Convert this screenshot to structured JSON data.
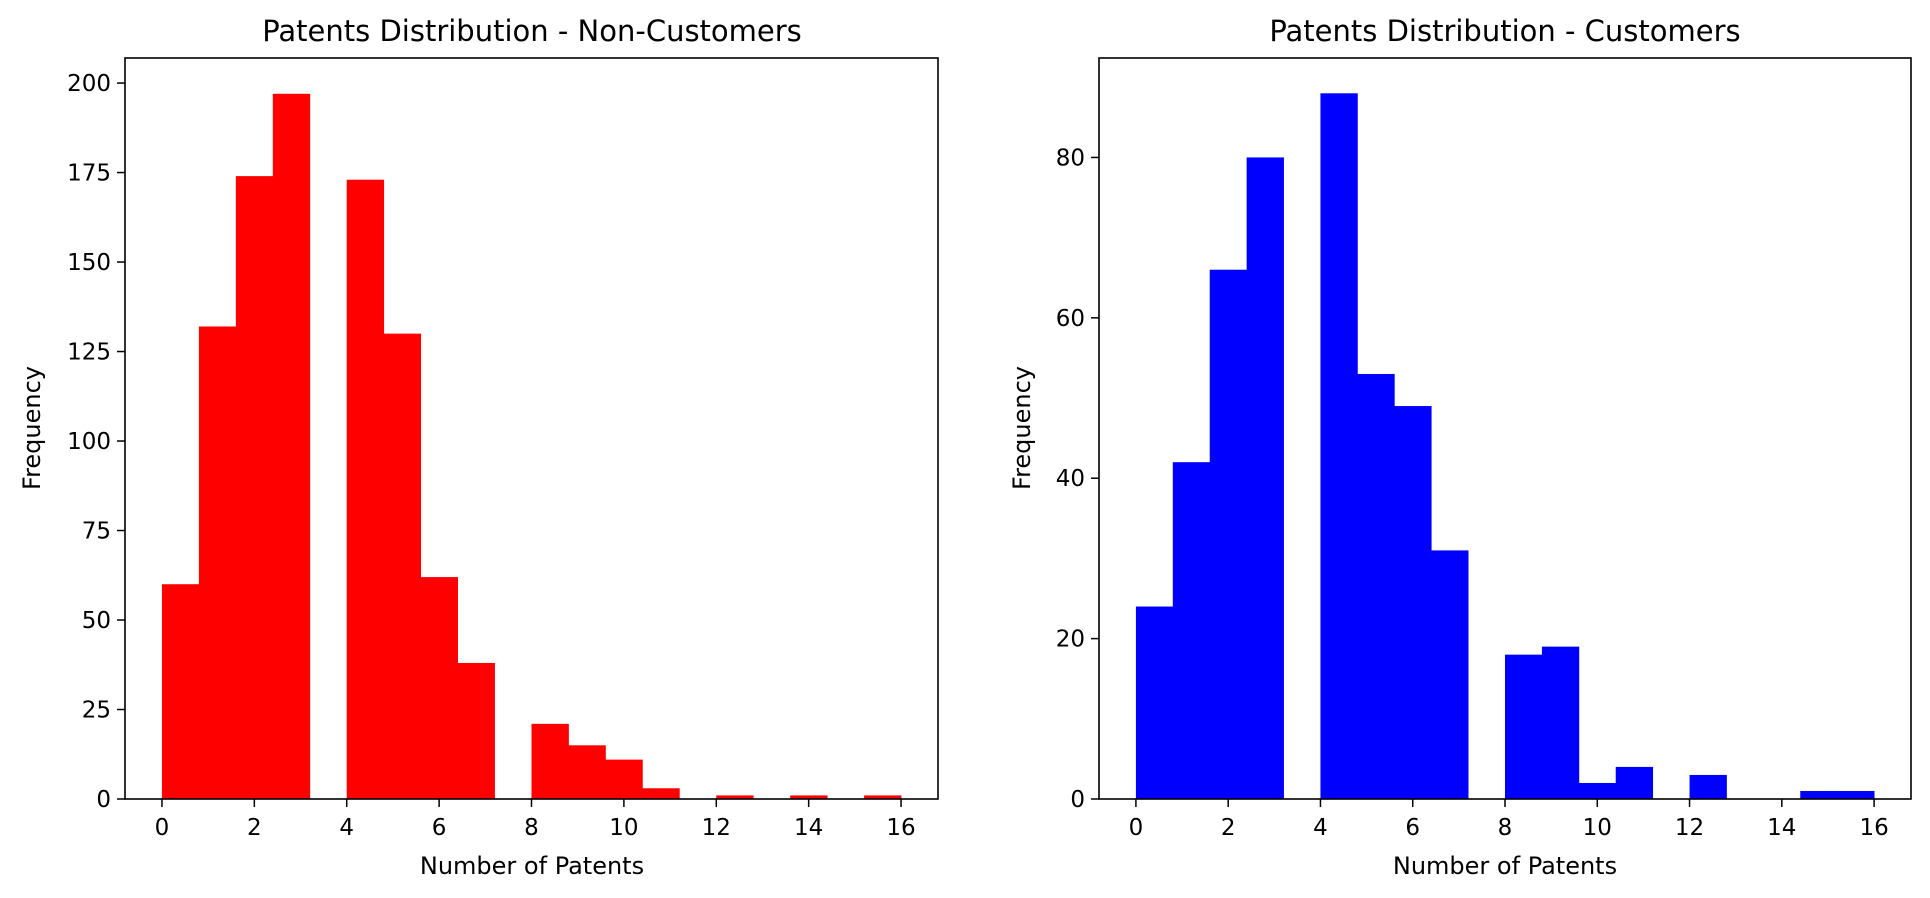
{
  "chart_data": [
    {
      "type": "bar",
      "title": "Patents Distribution - Non-Customers",
      "xlabel": "Number of Patents",
      "ylabel": "Frequency",
      "color": "#ff0000",
      "bins": [
        [
          0.0,
          0.8
        ],
        [
          0.8,
          1.6
        ],
        [
          1.6,
          2.4
        ],
        [
          2.4,
          3.2
        ],
        [
          3.2,
          4.0
        ],
        [
          4.0,
          4.8
        ],
        [
          4.8,
          5.6
        ],
        [
          5.6,
          6.4
        ],
        [
          6.4,
          7.2
        ],
        [
          7.2,
          8.0
        ],
        [
          8.0,
          8.8
        ],
        [
          8.8,
          9.6
        ],
        [
          9.6,
          10.4
        ],
        [
          10.4,
          11.2
        ],
        [
          11.2,
          12.0
        ],
        [
          12.0,
          12.8
        ],
        [
          12.8,
          13.6
        ],
        [
          13.6,
          14.4
        ],
        [
          14.4,
          15.2
        ],
        [
          15.2,
          16.0
        ]
      ],
      "values": [
        60,
        132,
        174,
        197,
        0,
        173,
        130,
        62,
        38,
        0,
        21,
        15,
        11,
        3,
        0,
        1,
        0,
        1,
        0,
        1
      ],
      "xlim": [
        -0.8,
        16.8
      ],
      "ylim": [
        0,
        207
      ],
      "xticks": [
        0,
        2,
        4,
        6,
        8,
        10,
        12,
        14,
        16
      ],
      "xtick_labels": [
        "0",
        "2",
        "4",
        "6",
        "8",
        "10",
        "12",
        "14",
        "16"
      ],
      "yticks": [
        0,
        25,
        50,
        75,
        100,
        125,
        150,
        175,
        200
      ],
      "ytick_labels": [
        "0",
        "25",
        "50",
        "75",
        "100",
        "125",
        "150",
        "175",
        "200"
      ]
    },
    {
      "type": "bar",
      "title": "Patents Distribution - Customers",
      "xlabel": "Number of Patents",
      "ylabel": "Frequency",
      "color": "#0000ff",
      "bins": [
        [
          0.0,
          0.8
        ],
        [
          0.8,
          1.6
        ],
        [
          1.6,
          2.4
        ],
        [
          2.4,
          3.2
        ],
        [
          3.2,
          4.0
        ],
        [
          4.0,
          4.8
        ],
        [
          4.8,
          5.6
        ],
        [
          5.6,
          6.4
        ],
        [
          6.4,
          7.2
        ],
        [
          7.2,
          8.0
        ],
        [
          8.0,
          8.8
        ],
        [
          8.8,
          9.6
        ],
        [
          9.6,
          10.4
        ],
        [
          10.4,
          11.2
        ],
        [
          11.2,
          12.0
        ],
        [
          12.0,
          12.8
        ],
        [
          12.8,
          13.6
        ],
        [
          13.6,
          14.4
        ],
        [
          14.4,
          15.2
        ],
        [
          15.2,
          16.0
        ]
      ],
      "values": [
        24,
        42,
        66,
        80,
        0,
        88,
        53,
        49,
        31,
        0,
        18,
        19,
        2,
        4,
        0,
        3,
        0,
        0,
        1,
        1
      ],
      "xlim": [
        -0.8,
        16.8
      ],
      "ylim": [
        0,
        92.4
      ],
      "xticks": [
        0,
        2,
        4,
        6,
        8,
        10,
        12,
        14,
        16
      ],
      "xtick_labels": [
        "0",
        "2",
        "4",
        "6",
        "8",
        "10",
        "12",
        "14",
        "16"
      ],
      "yticks": [
        0,
        20,
        40,
        60,
        80
      ],
      "ytick_labels": [
        "0",
        "20",
        "40",
        "60",
        "80"
      ]
    }
  ]
}
